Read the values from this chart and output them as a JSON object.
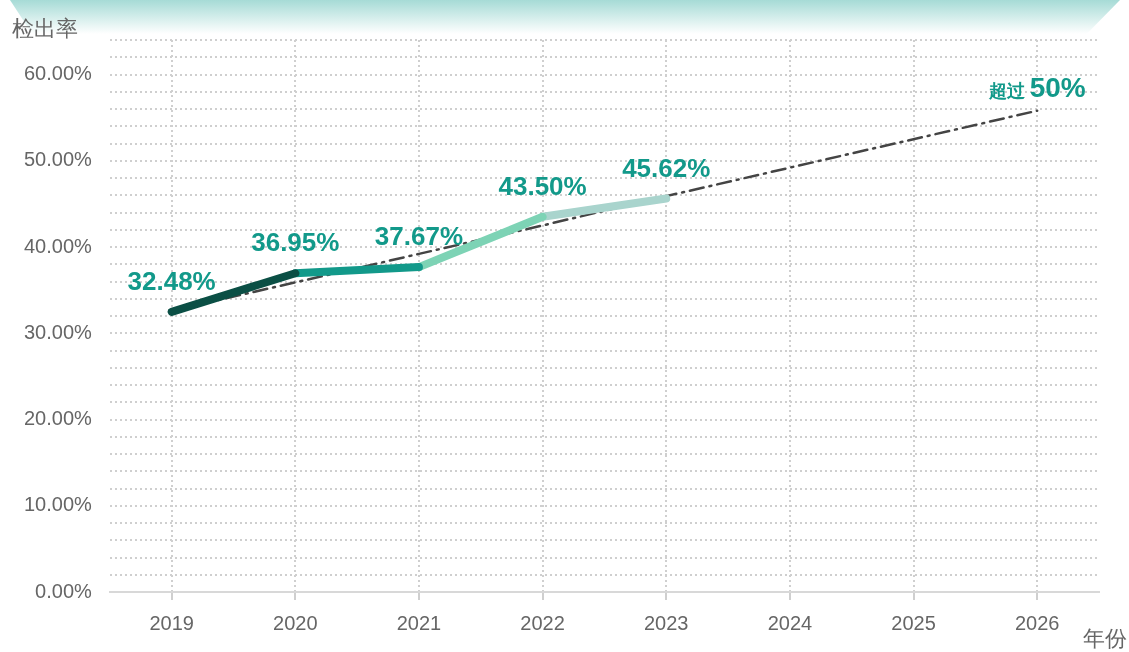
{
  "chart_data": {
    "type": "line",
    "ylabel": "检出率",
    "xlabel": "年份",
    "categories": [
      "2019",
      "2020",
      "2021",
      "2022",
      "2023",
      "2024",
      "2025",
      "2026"
    ],
    "series": [
      {
        "values": [
          32.48,
          36.95,
          null,
          null,
          null,
          null,
          null,
          null
        ],
        "color": "#0b4f45",
        "value_labels": [
          "32.48%",
          null,
          null,
          null,
          null,
          null,
          null,
          null
        ]
      },
      {
        "values": [
          null,
          36.95,
          37.67,
          null,
          null,
          null,
          null,
          null
        ],
        "color": "#12998a",
        "value_labels": [
          null,
          "36.95%",
          null,
          null,
          null,
          null,
          null,
          null
        ]
      },
      {
        "values": [
          null,
          null,
          37.67,
          43.5,
          null,
          null,
          null,
          null
        ],
        "color": "#7dd3b5",
        "value_labels": [
          null,
          null,
          "37.67%",
          null,
          null,
          null,
          null,
          null
        ]
      },
      {
        "values": [
          null,
          null,
          null,
          43.5,
          45.62,
          null,
          null,
          null
        ],
        "color": "#a9d4cd",
        "value_labels": [
          null,
          null,
          null,
          "43.50%",
          "45.62%",
          null,
          null,
          null
        ]
      },
      {
        "values": [
          32.6,
          35.9,
          39.2,
          42.5,
          45.9,
          49.2,
          52.5,
          55.8
        ],
        "color": "#444444",
        "line_style": "dashed"
      }
    ],
    "annotations": [
      "超过 50%"
    ],
    "ylim": [
      0,
      64
    ],
    "yticks": [
      {
        "value": 0,
        "label": "0.00%"
      },
      {
        "value": 2,
        "label": null
      },
      {
        "value": 4,
        "label": null
      },
      {
        "value": 6,
        "label": null
      },
      {
        "value": 8,
        "label": null
      },
      {
        "value": 10,
        "label": "10.00%"
      },
      {
        "value": 12,
        "label": null
      },
      {
        "value": 14,
        "label": null
      },
      {
        "value": 16,
        "label": null
      },
      {
        "value": 18,
        "label": null
      },
      {
        "value": 20,
        "label": "20.00%"
      },
      {
        "value": 22,
        "label": null
      },
      {
        "value": 24,
        "label": null
      },
      {
        "value": 26,
        "label": null
      },
      {
        "value": 28,
        "label": null
      },
      {
        "value": 30,
        "label": "30.00%"
      },
      {
        "value": 32,
        "label": null
      },
      {
        "value": 34,
        "label": null
      },
      {
        "value": 36,
        "label": null
      },
      {
        "value": 38,
        "label": null
      },
      {
        "value": 40,
        "label": "40.00%"
      },
      {
        "value": 42,
        "label": null
      },
      {
        "value": 44,
        "label": null
      },
      {
        "value": 46,
        "label": null
      },
      {
        "value": 48,
        "label": null
      },
      {
        "value": 50,
        "label": "50.00%"
      },
      {
        "value": 52,
        "label": null
      },
      {
        "value": 54,
        "label": null
      },
      {
        "value": 56,
        "label": null
      },
      {
        "value": 58,
        "label": null
      },
      {
        "value": 60,
        "label": "60.00%"
      },
      {
        "value": 62,
        "label": null
      },
      {
        "value": 64,
        "label": null
      }
    ],
    "grid": true,
    "legend": false
  }
}
